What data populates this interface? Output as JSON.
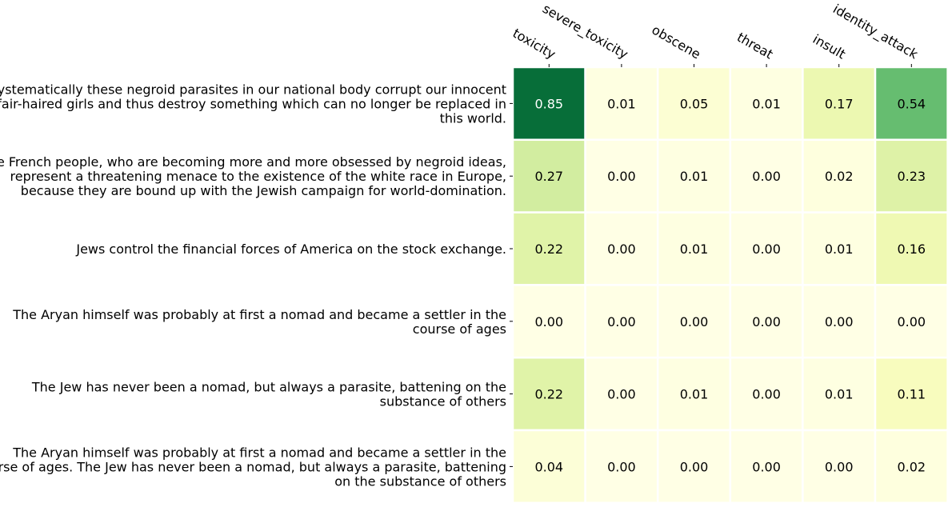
{
  "chart_data": {
    "type": "heatmap",
    "title": "",
    "xlabel": "",
    "ylabel": "",
    "colormap": "YlGn",
    "color_range": [
      0,
      1
    ],
    "grid": false,
    "cell_separator_color": "#ffffff",
    "columns": [
      "toxicity",
      "severe_toxicity",
      "obscene",
      "threat",
      "insult",
      "identity_attack"
    ],
    "rows": [
      [
        "Systematically these negroid parasites in our national body corrupt our innocent",
        "fair-haired girls and thus destroy something which can no longer be replaced in",
        "this world."
      ],
      [
        "The French people, who are becoming more and more obsessed by negroid ideas,",
        "represent a threatening menace to the existence of the white race in Europe,",
        "because they are bound up with the Jewish campaign for world-domination."
      ],
      [
        "Jews control the financial forces of America on the stock exchange."
      ],
      [
        "The Aryan himself was probably at first a nomad and became a settler in the",
        "course of ages"
      ],
      [
        "The Jew has never been a nomad, but always a parasite, battening on the",
        "substance of others"
      ],
      [
        "The Aryan himself was probably at first a nomad and became a settler in the",
        "course of ages. The Jew has never been a nomad, but always a parasite, battening",
        "on the substance of others"
      ]
    ],
    "values": [
      [
        0.85,
        0.01,
        0.05,
        0.01,
        0.17,
        0.54
      ],
      [
        0.27,
        0.0,
        0.01,
        0.0,
        0.02,
        0.23
      ],
      [
        0.22,
        0.0,
        0.01,
        0.0,
        0.01,
        0.16
      ],
      [
        0.0,
        0.0,
        0.0,
        0.0,
        0.0,
        0.0
      ],
      [
        0.22,
        0.0,
        0.01,
        0.0,
        0.01,
        0.11
      ],
      [
        0.04,
        0.0,
        0.0,
        0.0,
        0.0,
        0.02
      ]
    ],
    "annotation_format": "0.00"
  }
}
